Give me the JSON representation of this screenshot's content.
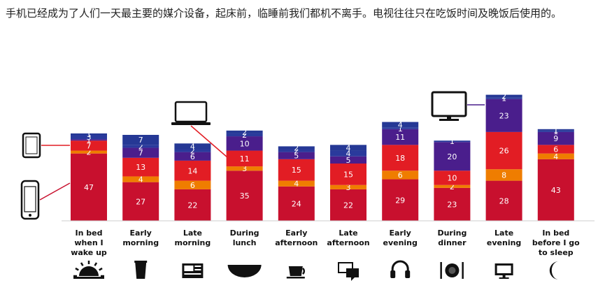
{
  "caption": "手机已经成为了人们一天最主要的媒介设备，起床前，临睡前我们都机不离手。电视往往只在吃饭时间及晚饭后使用的。",
  "chart_data": {
    "type": "bar",
    "stacked": true,
    "categories": [
      [
        "In bed",
        "when I",
        "wake up"
      ],
      [
        "Early",
        "morning"
      ],
      [
        "Late",
        "morning"
      ],
      [
        "During",
        "lunch"
      ],
      [
        "Early",
        "afternoon"
      ],
      [
        "Late",
        "afternoon"
      ],
      [
        "Early",
        "evening"
      ],
      [
        "During",
        "dinner"
      ],
      [
        "Late",
        "evening"
      ],
      [
        "In bed",
        "before I go",
        "to sleep"
      ]
    ],
    "category_icons": [
      "sunrise-icon",
      "cup-icon",
      "newspaper-icon",
      "bowl-icon",
      "coffee-cup-icon",
      "chat-bubbles-icon",
      "headphones-icon",
      "plate-cutlery-icon",
      "tv-monitor-icon",
      "crescent-moon-icon"
    ],
    "series": [
      {
        "device": "smartphone-icon",
        "color": "#c8102e",
        "values": [
          47,
          27,
          22,
          35,
          24,
          22,
          29,
          23,
          28,
          43
        ]
      },
      {
        "color": "#ef7d00",
        "values": [
          2,
          4,
          6,
          3,
          4,
          3,
          6,
          2,
          8,
          4
        ]
      },
      {
        "color": "#e21d24",
        "values": [
          7,
          13,
          14,
          11,
          15,
          15,
          18,
          10,
          26,
          6
        ]
      },
      {
        "device": "tv-icon",
        "color": "#4a1e8c",
        "values": [
          1,
          7,
          6,
          10,
          5,
          5,
          11,
          20,
          23,
          9
        ]
      },
      {
        "device": "tablet-icon",
        "color": "#2a3a9c",
        "values": [
          3,
          2,
          2,
          2,
          2,
          4,
          1,
          1,
          1,
          1
        ]
      },
      {
        "device": "laptop-icon",
        "color": "#253895",
        "values": [
          1,
          7,
          4,
          2,
          2,
          4,
          4,
          0,
          2,
          1
        ]
      }
    ],
    "segment_labels": [
      [
        "47",
        "2",
        "7",
        "1",
        "3",
        "1"
      ],
      [
        "27",
        "4",
        "13",
        "7",
        "2",
        "7"
      ],
      [
        "22",
        "6",
        "14",
        "6",
        "2",
        "4"
      ],
      [
        "35",
        "3",
        "11",
        "10",
        "2",
        "2"
      ],
      [
        "24",
        "4",
        "15",
        "5",
        "2",
        "2"
      ],
      [
        "22",
        "3",
        "15",
        "5",
        "4",
        "4"
      ],
      [
        "29",
        "6",
        "18",
        "11",
        "1",
        "4"
      ],
      [
        "23",
        "2",
        "10",
        "20",
        "1",
        ""
      ],
      [
        "28",
        "8",
        "26",
        "23",
        "1",
        "2"
      ],
      [
        "43",
        "4",
        "6",
        "9",
        "1",
        "1"
      ]
    ],
    "ylim": [
      0,
      100
    ],
    "grid": false,
    "legend": "device icons at left and above bars"
  }
}
